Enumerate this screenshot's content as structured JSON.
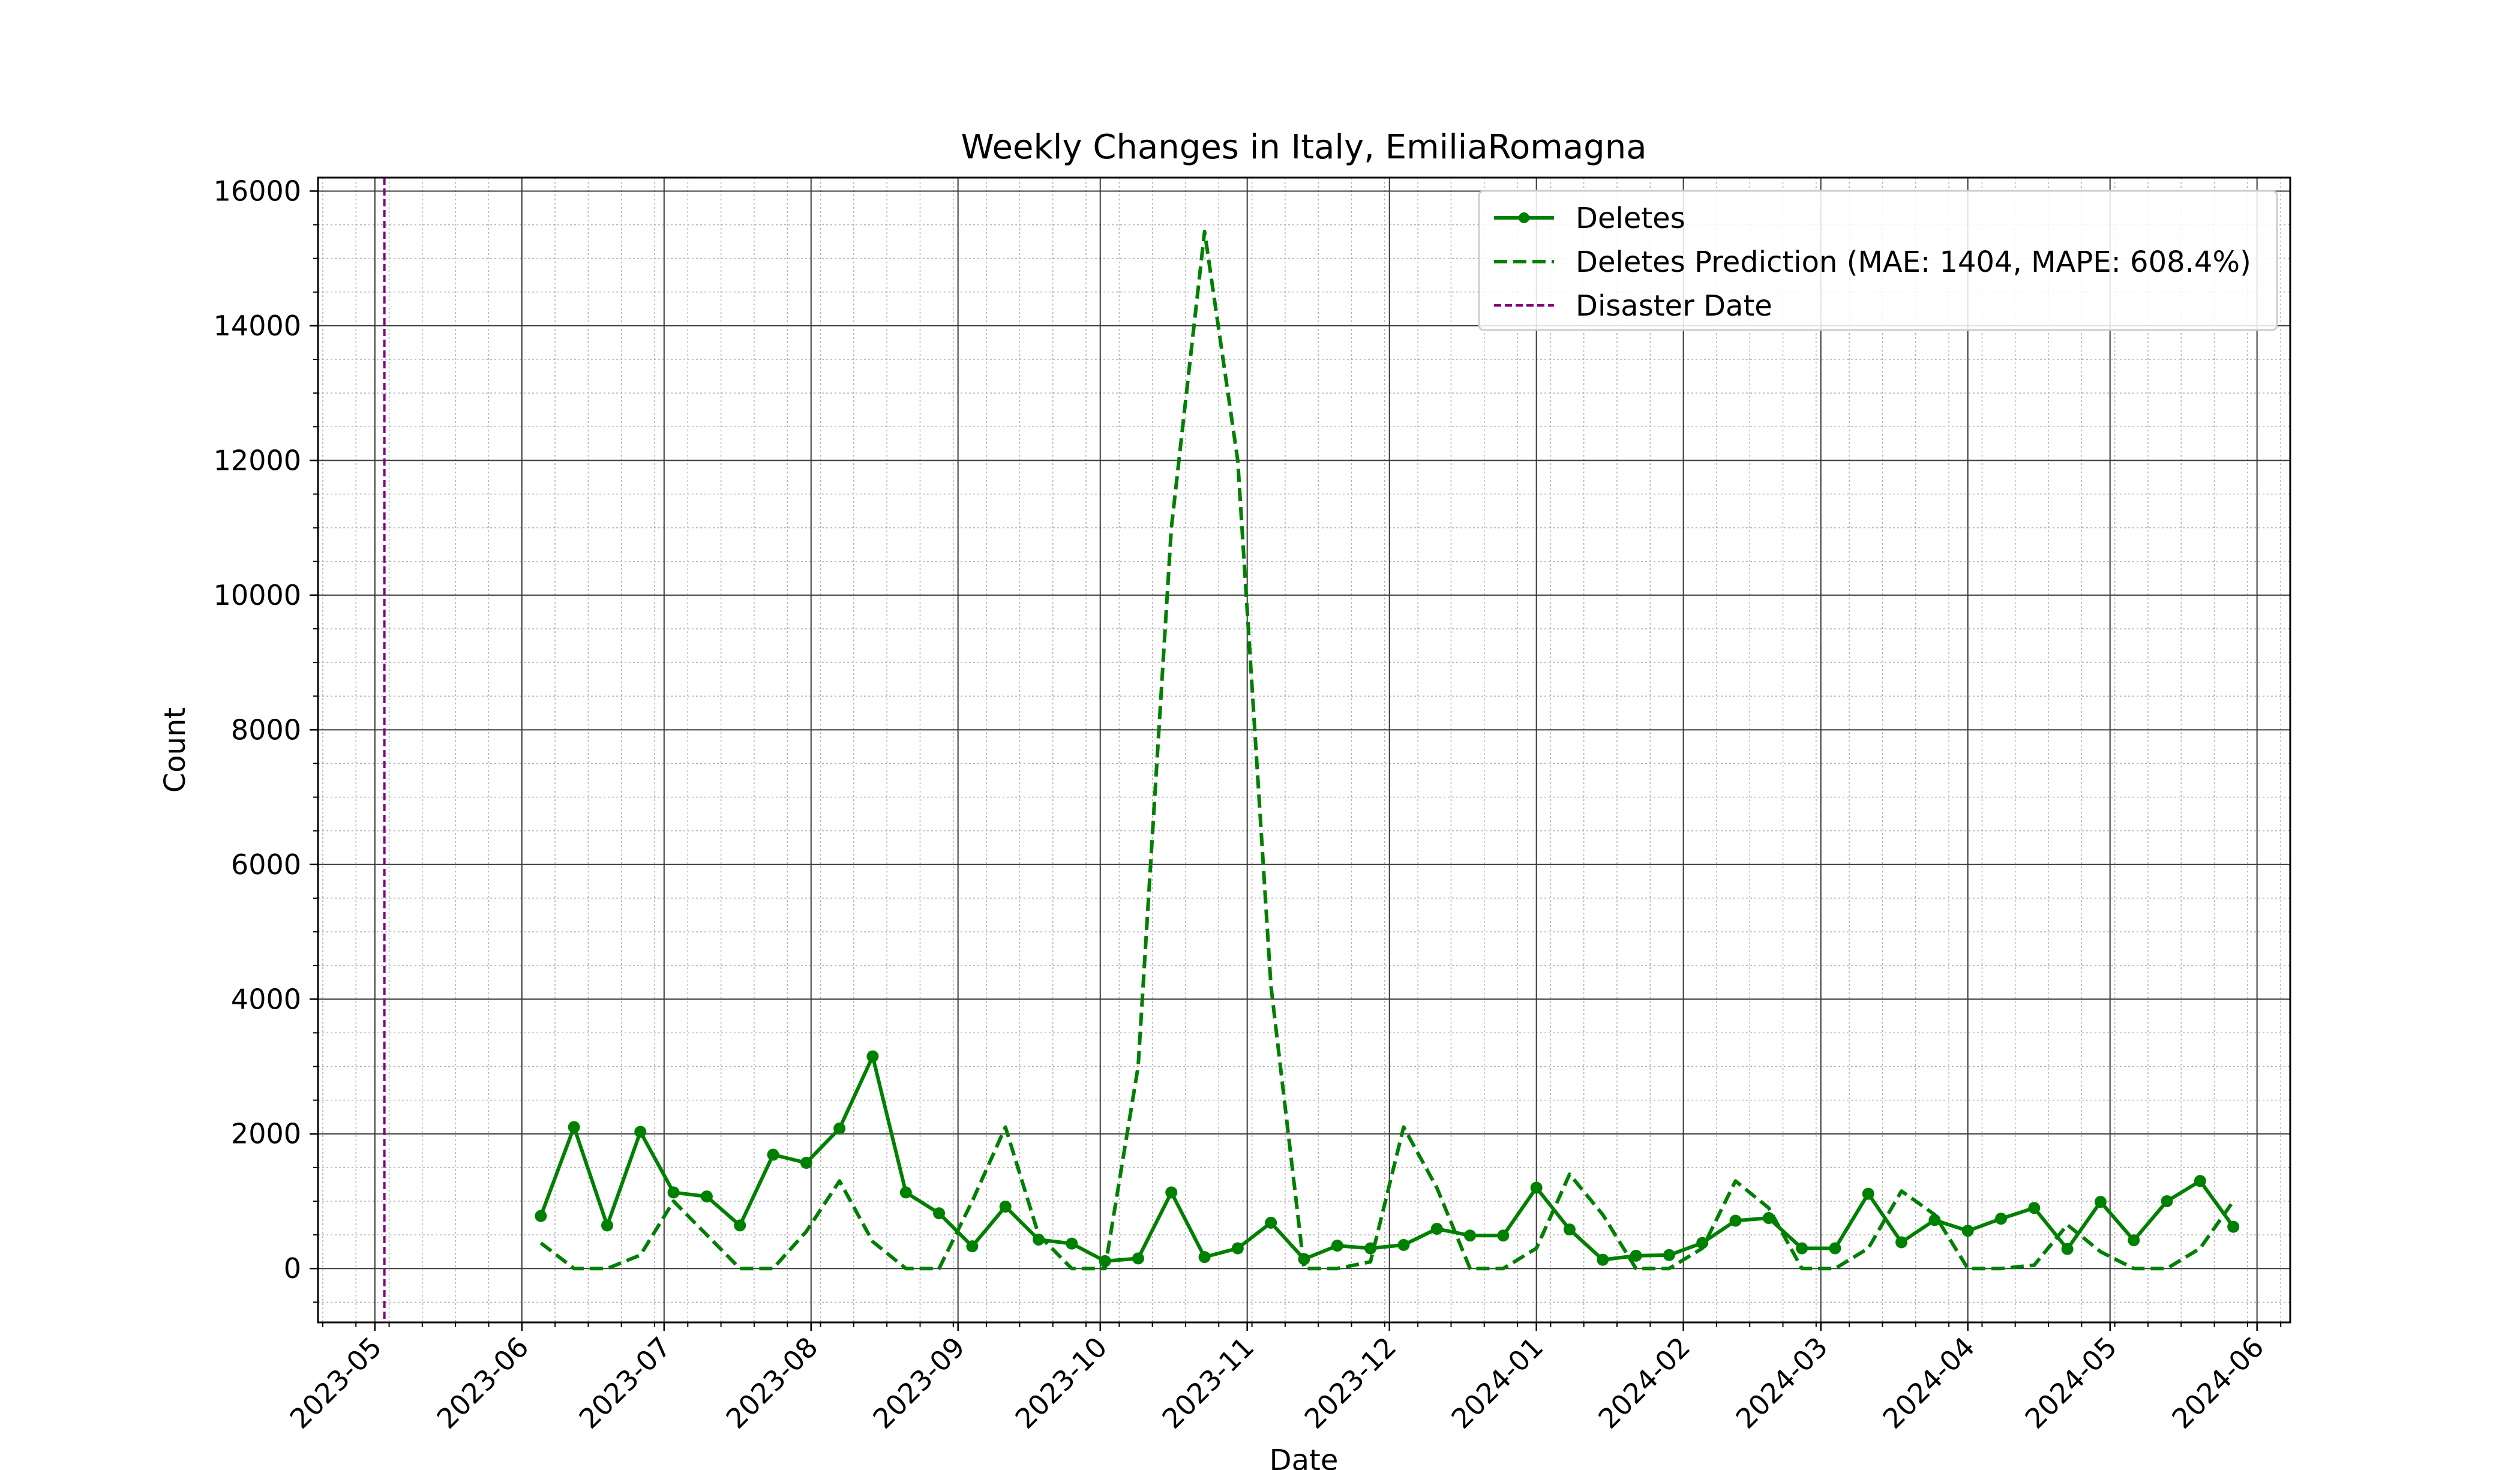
{
  "chart_data": {
    "type": "line",
    "title": "Weekly Changes in Italy, EmiliaRomagna",
    "xlabel": "Date",
    "ylabel": "Count",
    "ylim": [
      -800,
      16200
    ],
    "xlim": [
      "2023-04-19",
      "2024-06-08"
    ],
    "y_ticks": [
      0,
      2000,
      4000,
      6000,
      8000,
      10000,
      12000,
      14000,
      16000
    ],
    "x_ticks": [
      "2023-05",
      "2023-06",
      "2023-07",
      "2023-08",
      "2023-09",
      "2023-10",
      "2023-11",
      "2023-12",
      "2024-01",
      "2024-02",
      "2024-03",
      "2024-04",
      "2024-05",
      "2024-06"
    ],
    "grid": "major and minor",
    "legend_position": "top-right",
    "disaster_date": "2023-05-03",
    "x": [
      "2023-06-05",
      "2023-06-12",
      "2023-06-19",
      "2023-06-26",
      "2023-07-03",
      "2023-07-10",
      "2023-07-17",
      "2023-07-24",
      "2023-07-31",
      "2023-08-07",
      "2023-08-14",
      "2023-08-21",
      "2023-08-28",
      "2023-09-04",
      "2023-09-11",
      "2023-09-18",
      "2023-09-25",
      "2023-10-02",
      "2023-10-09",
      "2023-10-16",
      "2023-10-23",
      "2023-10-30",
      "2023-11-06",
      "2023-11-13",
      "2023-11-20",
      "2023-11-27",
      "2023-12-04",
      "2023-12-11",
      "2023-12-18",
      "2023-12-25",
      "2024-01-01",
      "2024-01-08",
      "2024-01-15",
      "2024-01-22",
      "2024-01-29",
      "2024-02-05",
      "2024-02-12",
      "2024-02-19",
      "2024-02-26",
      "2024-03-04",
      "2024-03-11",
      "2024-03-18",
      "2024-03-25",
      "2024-04-01",
      "2024-04-08",
      "2024-04-15",
      "2024-04-22",
      "2024-04-29",
      "2024-05-06",
      "2024-05-13",
      "2024-05-20",
      "2024-05-27"
    ],
    "series": [
      {
        "name": "Deletes",
        "style": "solid-markers",
        "color": "#008000",
        "values": [
          780,
          2100,
          640,
          2030,
          1130,
          1070,
          640,
          1690,
          1570,
          2080,
          3150,
          1130,
          820,
          330,
          920,
          430,
          370,
          110,
          150,
          1130,
          170,
          300,
          680,
          140,
          340,
          300,
          350,
          590,
          490,
          490,
          1200,
          580,
          130,
          190,
          200,
          380,
          710,
          750,
          300,
          300,
          1110,
          390,
          720,
          560,
          740,
          900,
          290,
          990,
          420,
          1000,
          1300,
          620
        ]
      },
      {
        "name": "Deletes Prediction (MAE: 1404, MAPE: 608.4%)",
        "style": "dashed",
        "color": "#008000",
        "values": [
          380,
          0,
          0,
          200,
          1000,
          500,
          0,
          0,
          550,
          1300,
          400,
          0,
          0,
          1000,
          2100,
          500,
          0,
          0,
          3000,
          11000,
          15400,
          12000,
          4200,
          0,
          0,
          100,
          2100,
          1200,
          0,
          0,
          300,
          1400,
          800,
          0,
          0,
          300,
          1300,
          900,
          0,
          0,
          300,
          1150,
          800,
          0,
          0,
          50,
          650,
          250,
          0,
          0,
          300,
          1000
        ]
      }
    ],
    "vline_name": "Disaster Date",
    "vline_color": "#800080"
  }
}
